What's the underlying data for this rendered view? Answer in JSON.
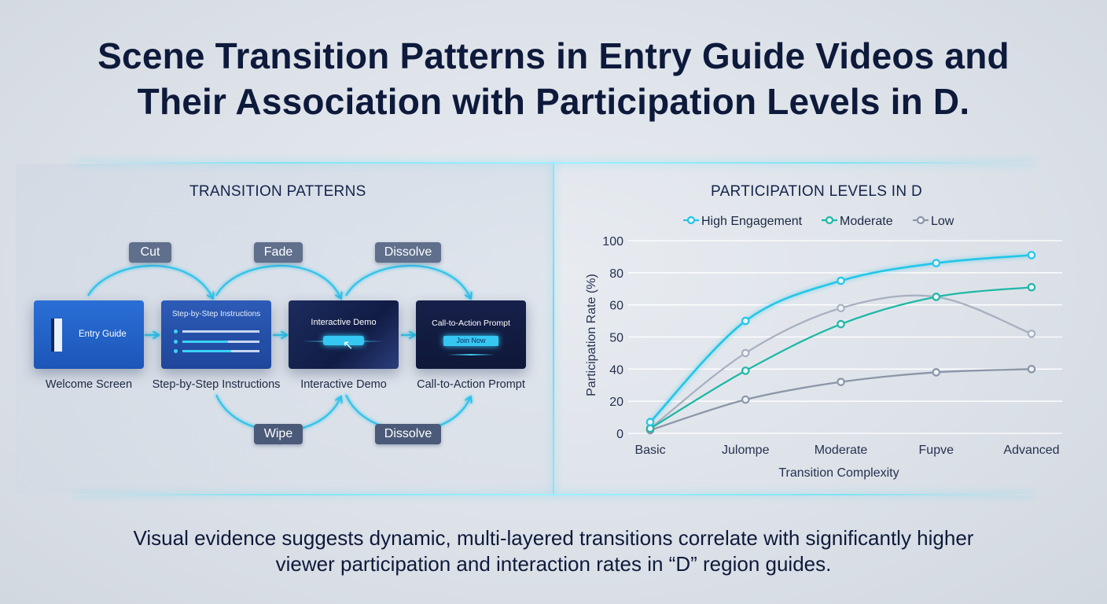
{
  "title": {
    "line1": "Scene Transition Patterns in Entry Guide Videos and",
    "line2": "Their Association with Participation Levels in D."
  },
  "left_panel": {
    "heading": "TRANSITION PATTERNS",
    "boxes": [
      {
        "inner": "Entry Guide",
        "label": "Welcome Screen"
      },
      {
        "inner": "Step-by-Step Instructions",
        "label": "Step-by-Step Instructions"
      },
      {
        "inner": "Interactive Demo",
        "label": "Interactive Demo"
      },
      {
        "inner": "Call-to-Action Prompt",
        "button": "Join Now",
        "label": "Call-to-Action Prompt"
      }
    ],
    "top_transitions": [
      "Cut",
      "Fade",
      "Dissolve"
    ],
    "bottom_transitions": [
      "Wipe",
      "Dissolve"
    ]
  },
  "right_panel": {
    "heading": "PARTICIPATION LEVELS IN D"
  },
  "chart_data": {
    "type": "line",
    "title": "PARTICIPATION LEVELS IN D",
    "xlabel": "Transition Complexity",
    "ylabel": "Participation Rate (%)",
    "categories": [
      "Basic",
      "Julompe",
      "Moderate",
      "Fupve",
      "Advanced"
    ],
    "y_ticks": [
      "0",
      "20",
      "40",
      "50",
      "60",
      "80",
      "100"
    ],
    "y_tick_values": [
      0,
      20,
      40,
      50,
      60,
      80,
      100
    ],
    "legend_position": "top",
    "grid": true,
    "series": [
      {
        "name": "High Engagement",
        "color": "#22c6e8",
        "values": [
          7,
          55,
          75,
          86,
          91
        ]
      },
      {
        "name": "Moderate",
        "color": "#1fb8a6",
        "values": [
          3,
          39,
          54,
          65,
          71
        ]
      },
      {
        "name": "Low",
        "color": "#8b96a8",
        "values": [
          2,
          21,
          32,
          38,
          40
        ]
      },
      {
        "name": "",
        "color": "#a7b1c0",
        "values": [
          3,
          45,
          59,
          65,
          51
        ]
      }
    ]
  },
  "footer": {
    "line1": "Visual evidence suggests dynamic, multi-layered transitions correlate with significantly higher",
    "line2": "viewer participation and interaction rates in “D” region guides."
  }
}
